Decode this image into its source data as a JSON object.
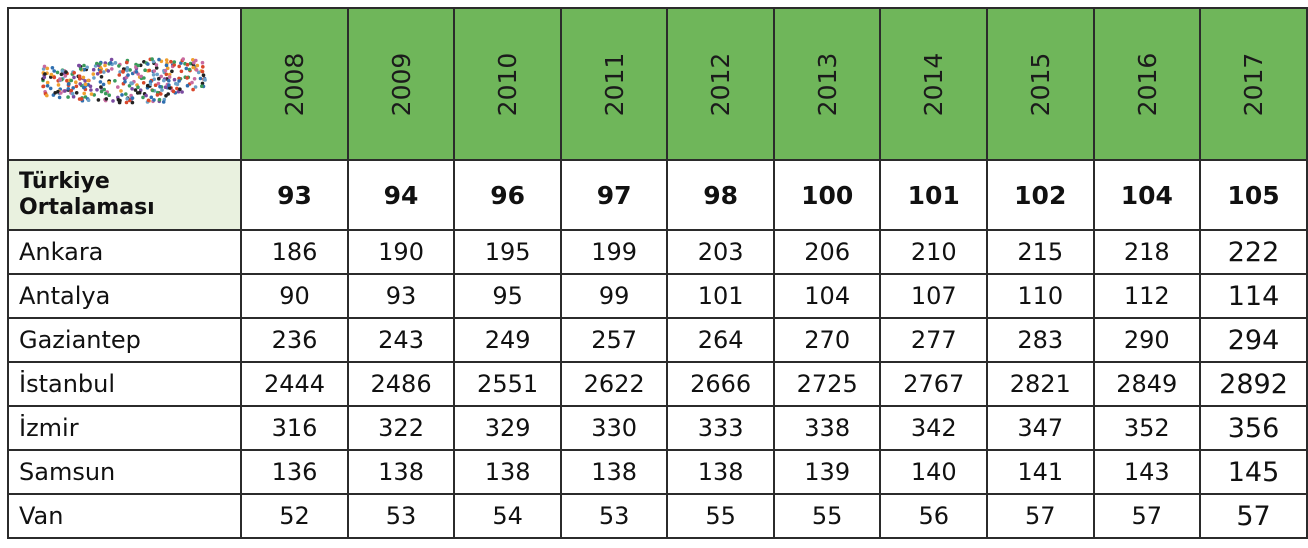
{
  "table": {
    "years": [
      "2008",
      "2009",
      "2010",
      "2011",
      "2012",
      "2013",
      "2014",
      "2015",
      "2016",
      "2017"
    ],
    "rows": [
      {
        "label": "Türkiye Ortalaması",
        "values": [
          93,
          94,
          96,
          97,
          98,
          100,
          101,
          102,
          104,
          105
        ]
      },
      {
        "label": "Ankara",
        "values": [
          186,
          190,
          195,
          199,
          203,
          206,
          210,
          215,
          218,
          222
        ]
      },
      {
        "label": "Antalya",
        "values": [
          90,
          93,
          95,
          99,
          101,
          104,
          107,
          110,
          112,
          114
        ]
      },
      {
        "label": "Gaziantep",
        "values": [
          236,
          243,
          249,
          257,
          264,
          270,
          277,
          283,
          290,
          294
        ]
      },
      {
        "label": "İstanbul",
        "values": [
          2444,
          2486,
          2551,
          2622,
          2666,
          2725,
          2767,
          2821,
          2849,
          2892
        ]
      },
      {
        "label": "İzmir",
        "values": [
          316,
          322,
          329,
          330,
          333,
          338,
          342,
          347,
          352,
          356
        ]
      },
      {
        "label": "Samsun",
        "values": [
          136,
          138,
          138,
          138,
          138,
          139,
          140,
          141,
          143,
          145
        ]
      },
      {
        "label": "Van",
        "values": [
          52,
          53,
          54,
          53,
          55,
          55,
          56,
          57,
          57,
          57
        ]
      }
    ]
  }
}
